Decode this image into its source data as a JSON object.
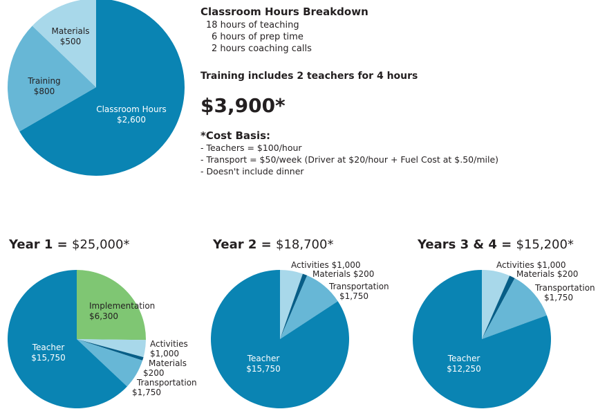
{
  "colors": {
    "dark_blue": "#0a84b3",
    "mid_blue": "#67b7d6",
    "light_blue": "#a8d8ea",
    "green": "#7fc673",
    "navy": "#075e87"
  },
  "info": {
    "breakdown_title": "Classroom Hours Breakdown",
    "breakdown_lines": [
      "18 hours of teaching",
      "6 hours of prep time",
      "2 hours coaching calls"
    ],
    "training_note": "Training includes 2 teachers for 4 hours",
    "total": "$3,900*",
    "cost_basis_title": "*Cost Basis:",
    "cost_basis_lines": [
      "- Teachers = $100/hour",
      "- Transport = $50/week (Driver at $20/hour + Fuel Cost at $.50/mile)",
      "- Doesn't include dinner"
    ]
  },
  "chart_data": [
    {
      "type": "pie",
      "title": "",
      "slices": [
        {
          "label": "Classroom Hours",
          "value_label": "$2,600",
          "value": 2600,
          "color": "#0a84b3"
        },
        {
          "label": "Training",
          "value_label": "$800",
          "value": 800,
          "color": "#67b7d6"
        },
        {
          "label": "Materials",
          "value_label": "$500",
          "value": 500,
          "color": "#a8d8ea"
        }
      ]
    },
    {
      "type": "pie",
      "title": "Year 1 = ",
      "title_value": "$25,000*",
      "slices": [
        {
          "label": "Implementation",
          "value_label": "$6,300",
          "value": 6300,
          "color": "#7fc673"
        },
        {
          "label": "Activities",
          "value_label": "$1,000",
          "value": 1000,
          "color": "#a8d8ea"
        },
        {
          "label": "Materials",
          "value_label": "$200",
          "value": 200,
          "color": "#075e87"
        },
        {
          "label": "Transportation",
          "value_label": "$1,750",
          "value": 1750,
          "color": "#67b7d6"
        },
        {
          "label": "Teacher",
          "value_label": "$15,750",
          "value": 15750,
          "color": "#0a84b3"
        }
      ]
    },
    {
      "type": "pie",
      "title": "Year 2 = ",
      "title_value": "$18,700*",
      "slices": [
        {
          "label": "Activities",
          "value_label": "$1,000",
          "value": 1000,
          "color": "#a8d8ea"
        },
        {
          "label": "Materials",
          "value_label": "$200",
          "value": 200,
          "color": "#075e87"
        },
        {
          "label": "Transportation",
          "value_label": "$1,750",
          "value": 1750,
          "color": "#67b7d6"
        },
        {
          "label": "Teacher",
          "value_label": "$15,750",
          "value": 15750,
          "color": "#0a84b3"
        }
      ]
    },
    {
      "type": "pie",
      "title": "Years 3 & 4 = ",
      "title_value": "$15,200*",
      "slices": [
        {
          "label": "Activities",
          "value_label": "$1,000",
          "value": 1000,
          "color": "#a8d8ea"
        },
        {
          "label": "Materials",
          "value_label": "$200",
          "value": 200,
          "color": "#075e87"
        },
        {
          "label": "Transportation",
          "value_label": "$1,750",
          "value": 1750,
          "color": "#67b7d6"
        },
        {
          "label": "Teacher",
          "value_label": "$12,250",
          "value": 12250,
          "color": "#0a84b3"
        }
      ]
    }
  ]
}
